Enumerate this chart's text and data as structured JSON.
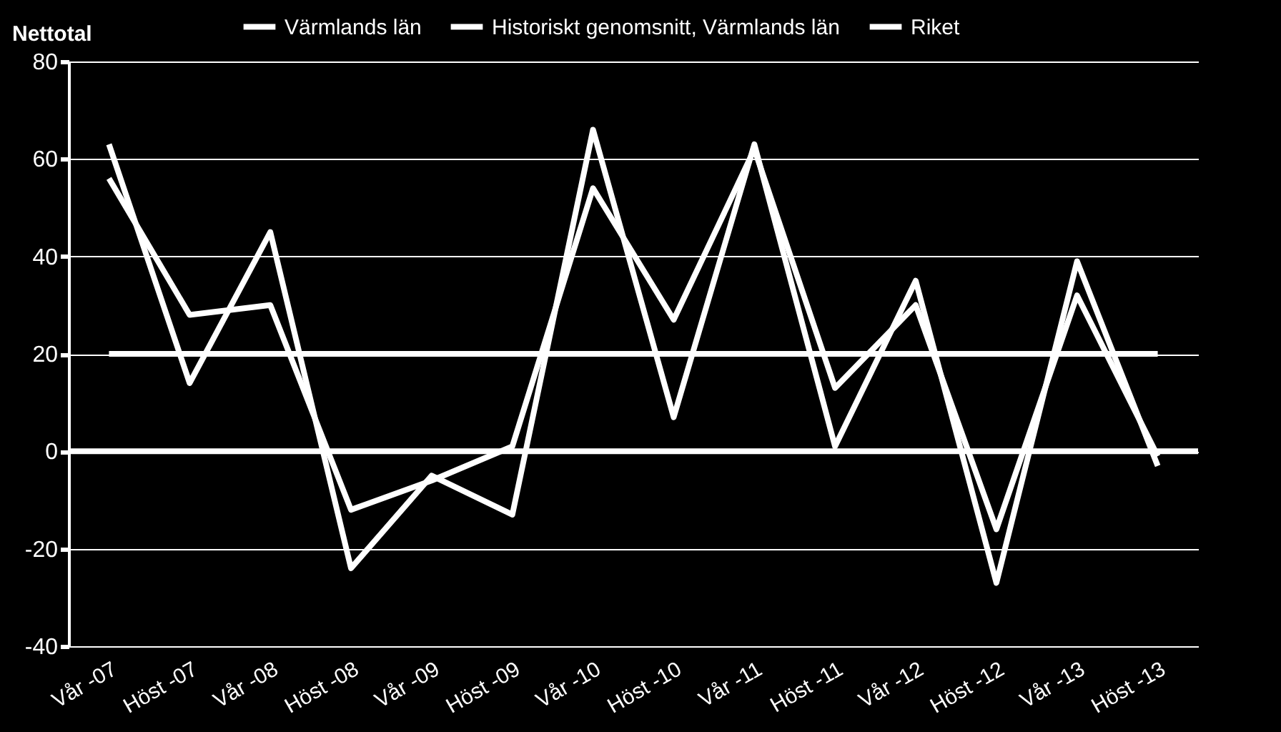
{
  "chart_data": {
    "type": "line",
    "ylabel": "Nettotal",
    "categories": [
      "Vår -07",
      "Höst -07",
      "Vår -08",
      "Höst -08",
      "Vår -09",
      "Höst -09",
      "Vår -10",
      "Höst -10",
      "Vår -11",
      "Höst -11",
      "Vår -12",
      "Höst -12",
      "Vår -13",
      "Höst -13"
    ],
    "series": [
      {
        "name": "Värmlands län",
        "color": "#ffffff",
        "values": [
          63,
          14,
          45,
          -24,
          -5,
          -13,
          66,
          7,
          63,
          1,
          35,
          -27,
          39,
          -3
        ]
      },
      {
        "name": "Historiskt genomsnitt, Värmlands län",
        "color": "#ffffff",
        "values": [
          20,
          20,
          20,
          20,
          20,
          20,
          20,
          20,
          20,
          20,
          20,
          20,
          20,
          20
        ]
      },
      {
        "name": "Riket",
        "color": "#ffffff",
        "values": [
          56,
          28,
          30,
          -12,
          -6,
          1,
          54,
          27,
          62,
          13,
          30,
          -16,
          32,
          -1
        ]
      }
    ],
    "ylim": [
      -40,
      80
    ],
    "yticks": [
      -40,
      -20,
      0,
      20,
      40,
      60,
      80
    ],
    "grid": "y",
    "legend": "top",
    "marker": "none",
    "line_style": "solid",
    "ref_lines": [
      {
        "axis": "y",
        "value": 0,
        "color": "#ffffff"
      }
    ]
  }
}
